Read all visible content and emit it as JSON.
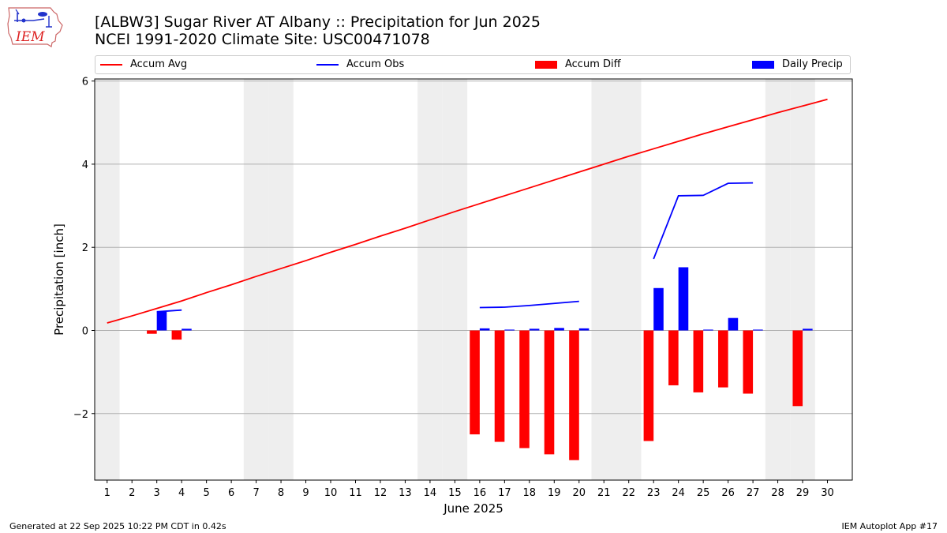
{
  "header": {
    "title_line1": "[ALBW3] Sugar River  AT Albany :: Precipitation for Jun 2025",
    "title_line2": "NCEI 1991-2020 Climate Site: USC00471078",
    "logo_text": "IEM"
  },
  "footer": {
    "left": "Generated at 22 Sep 2025 10:22 PM CDT in 0.42s",
    "right": "IEM Autoplot App #17"
  },
  "colors": {
    "accum_avg": "#ff0000",
    "accum_obs": "#0000ff",
    "accum_diff": "#ff0000",
    "daily_precip": "#0000ff",
    "weekend_shade": "#eeeeee",
    "grid": "#b0b0b0"
  },
  "chart_data": {
    "type": "bar",
    "xlabel": "June 2025",
    "ylabel": "Precipitation [inch]",
    "ylim": [
      -3.6,
      6.05
    ],
    "xlim": [
      0.5,
      31.0
    ],
    "yticks": [
      -2,
      0,
      2,
      4,
      6
    ],
    "ytick_labels": [
      "−2",
      "0",
      "2",
      "4",
      "6"
    ],
    "days": [
      1,
      2,
      3,
      4,
      5,
      6,
      7,
      8,
      9,
      10,
      11,
      12,
      13,
      14,
      15,
      16,
      17,
      18,
      19,
      20,
      21,
      22,
      23,
      24,
      25,
      26,
      27,
      28,
      29,
      30
    ],
    "day_labels": [
      "1",
      "2",
      "3",
      "4",
      "5",
      "6",
      "7",
      "8",
      "9",
      "10",
      "11",
      "12",
      "13",
      "14",
      "15",
      "16",
      "17",
      "18",
      "19",
      "20",
      "21",
      "22",
      "23",
      "24",
      "25",
      "26",
      "27",
      "28",
      "29",
      "30"
    ],
    "weekend_days": [
      1,
      7,
      8,
      14,
      15,
      21,
      22,
      28,
      29
    ],
    "grid": "y",
    "legend_position": "top",
    "legend": [
      "Accum Avg",
      "Accum Obs",
      "Accum Diff",
      "Daily Precip"
    ],
    "series": [
      {
        "name": "Accum Avg",
        "kind": "line",
        "x": [
          1,
          2,
          3,
          4,
          5,
          6,
          7,
          8,
          9,
          10,
          11,
          12,
          13,
          14,
          15,
          16,
          17,
          18,
          19,
          20,
          21,
          22,
          23,
          24,
          25,
          26,
          27,
          28,
          29,
          30
        ],
        "values": [
          0.18,
          0.35,
          0.53,
          0.71,
          0.91,
          1.1,
          1.3,
          1.49,
          1.68,
          1.88,
          2.07,
          2.27,
          2.46,
          2.66,
          2.86,
          3.05,
          3.24,
          3.43,
          3.62,
          3.81,
          4.0,
          4.19,
          4.37,
          4.55,
          4.73,
          4.9,
          5.07,
          5.24,
          5.4,
          5.56
        ]
      },
      {
        "name": "Accum Obs",
        "kind": "line",
        "segments": [
          {
            "x": [
              3,
              4
            ],
            "values": [
              0.45,
              0.49
            ]
          },
          {
            "x": [
              16,
              17,
              18,
              19,
              20
            ],
            "values": [
              0.55,
              0.56,
              0.6,
              0.65,
              0.7
            ]
          },
          {
            "x": [
              23,
              24,
              25,
              26,
              27
            ],
            "values": [
              1.72,
              3.24,
              3.25,
              3.54,
              3.55
            ]
          }
        ]
      },
      {
        "name": "Accum Diff",
        "kind": "bar",
        "x": [
          3,
          4,
          16,
          17,
          18,
          19,
          20,
          23,
          24,
          25,
          26,
          27,
          29
        ],
        "values": [
          -0.08,
          -0.22,
          -2.5,
          -2.68,
          -2.83,
          -2.98,
          -3.12,
          -2.66,
          -1.32,
          -1.49,
          -1.37,
          -1.52,
          -1.82
        ]
      },
      {
        "name": "Daily Precip",
        "kind": "bar",
        "x": [
          3,
          4,
          16,
          17,
          18,
          19,
          20,
          23,
          24,
          25,
          26,
          27,
          29
        ],
        "values": [
          0.45,
          0.04,
          0.05,
          0.02,
          0.04,
          0.06,
          0.05,
          1.02,
          1.52,
          0.02,
          0.3,
          0.02,
          0.04
        ]
      }
    ]
  }
}
